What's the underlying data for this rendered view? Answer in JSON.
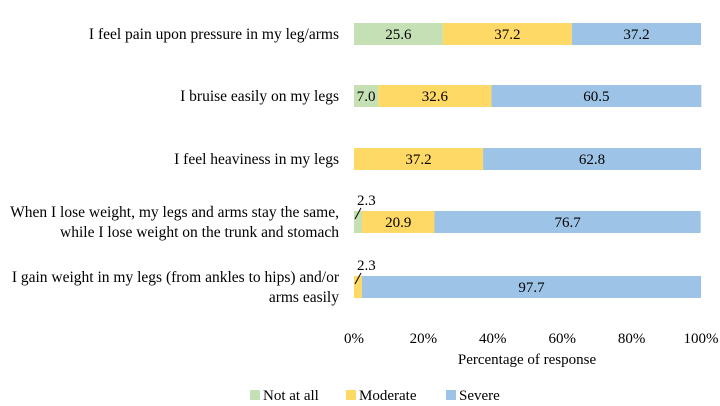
{
  "chart_data": {
    "type": "bar",
    "orientation": "horizontal",
    "stacked": true,
    "title": "",
    "xlabel": "Percentage of response",
    "ylabel": "",
    "xlim": [
      0,
      100
    ],
    "xticks": [
      "0%",
      "20%",
      "40%",
      "60%",
      "80%",
      "100%"
    ],
    "categories": [
      [
        "I feel pain upon pressure in my leg/arms"
      ],
      [
        "I bruise easily on my legs"
      ],
      [
        "I feel heaviness in my legs"
      ],
      [
        "When I lose weight, my legs and arms stay the same,",
        "while I lose weight on the trunk and stomach"
      ],
      [
        "I gain weight in my legs (from ankles to hips) and/or",
        "arms easily"
      ]
    ],
    "series": [
      {
        "name": "Not at all",
        "color": "#c5e0b4",
        "values": [
          25.6,
          7.0,
          0,
          2.3,
          0
        ]
      },
      {
        "name": "Moderate",
        "color": "#ffd966",
        "values": [
          37.2,
          32.6,
          37.2,
          20.9,
          2.3
        ]
      },
      {
        "name": "Severe",
        "color": "#9dc3e6",
        "values": [
          37.2,
          60.5,
          62.8,
          76.7,
          97.7
        ]
      }
    ],
    "data_labels": [
      [
        "25.6",
        "37.2",
        "37.2"
      ],
      [
        "7.0",
        "32.6",
        "60.5"
      ],
      [
        "",
        "37.2",
        "62.8"
      ],
      [
        "2.3",
        "20.9",
        "76.7"
      ],
      [
        "",
        "2.3",
        "97.7"
      ]
    ],
    "grid": false,
    "legend_position": "bottom"
  }
}
